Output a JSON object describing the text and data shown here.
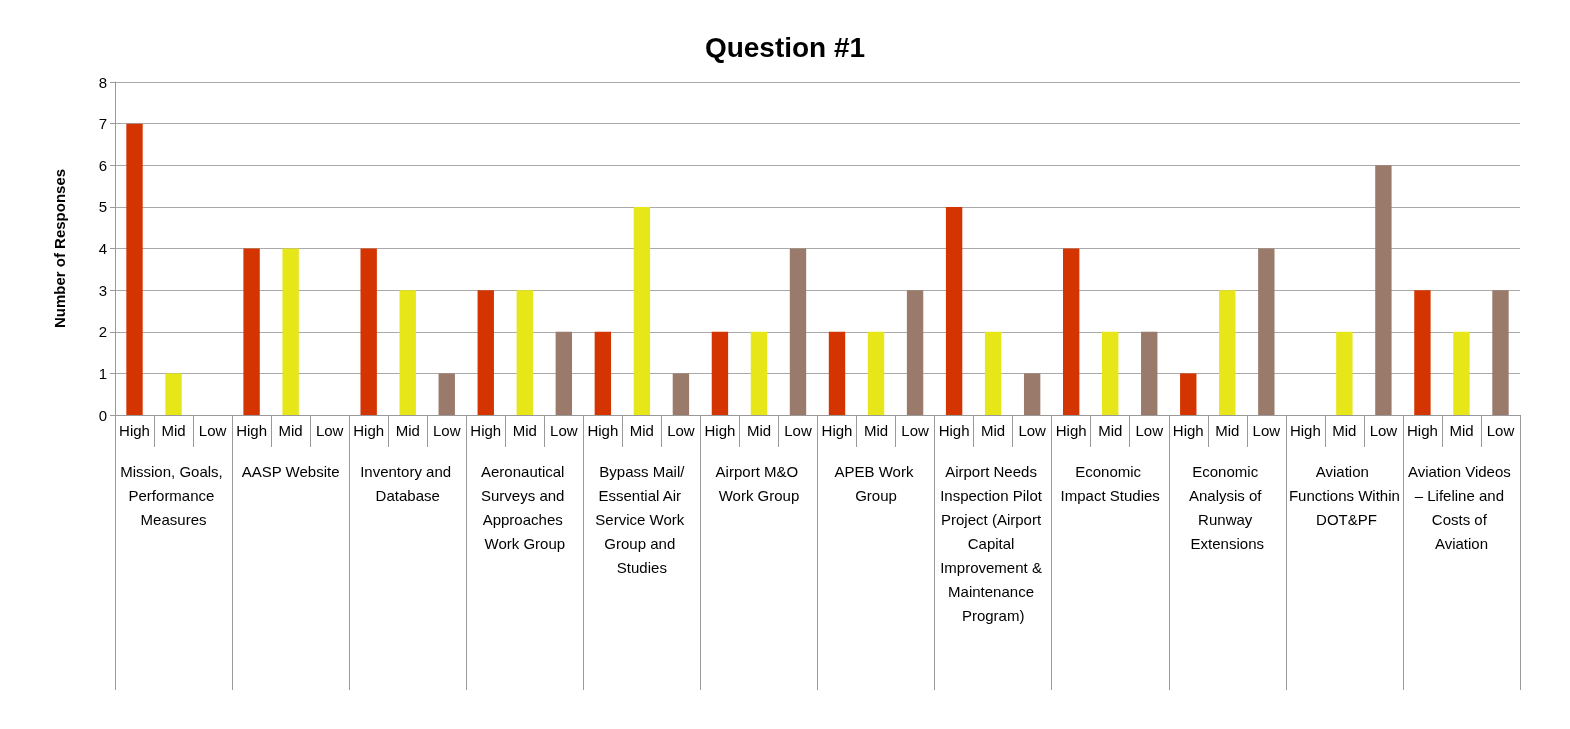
{
  "chart_data": {
    "type": "bar",
    "title": "Question #1",
    "ylabel": "Number of Responses",
    "categories": [
      "Mission, Goals, Performance Measures",
      "AASP Website",
      "Inventory and Database",
      "Aeronautical Surveys and Approaches Work Group",
      "Bypass Mail/Essential Air Service Work Group and Studies",
      "Airport M&O Work Group",
      "APEB Work Group",
      "Airport Needs Inspection Pilot Project (Airport Capital Improvement & Maintenance Program)",
      "Economic Impact Studies",
      "Economic Analysis of Runway Extensions",
      "Aviation Functions Within DOT&PF",
      "Aviation Videos – Lifeline and Costs of Aviation"
    ],
    "series": [
      {
        "name": "High",
        "color": "#d43500",
        "values": [
          7,
          4,
          4,
          3,
          2,
          2,
          2,
          5,
          4,
          1,
          0,
          3
        ]
      },
      {
        "name": "Mid",
        "color": "#e6e619",
        "values": [
          1,
          4,
          3,
          3,
          5,
          2,
          2,
          2,
          2,
          3,
          2,
          2
        ]
      },
      {
        "name": "Low",
        "color": "#9a7b6b",
        "values": [
          0,
          0,
          1,
          2,
          1,
          4,
          3,
          1,
          2,
          4,
          6,
          3
        ]
      }
    ],
    "ylim": [
      0,
      8
    ],
    "yticks": [
      0,
      1,
      2,
      3,
      4,
      5,
      6,
      7,
      8
    ],
    "grid": "y"
  }
}
